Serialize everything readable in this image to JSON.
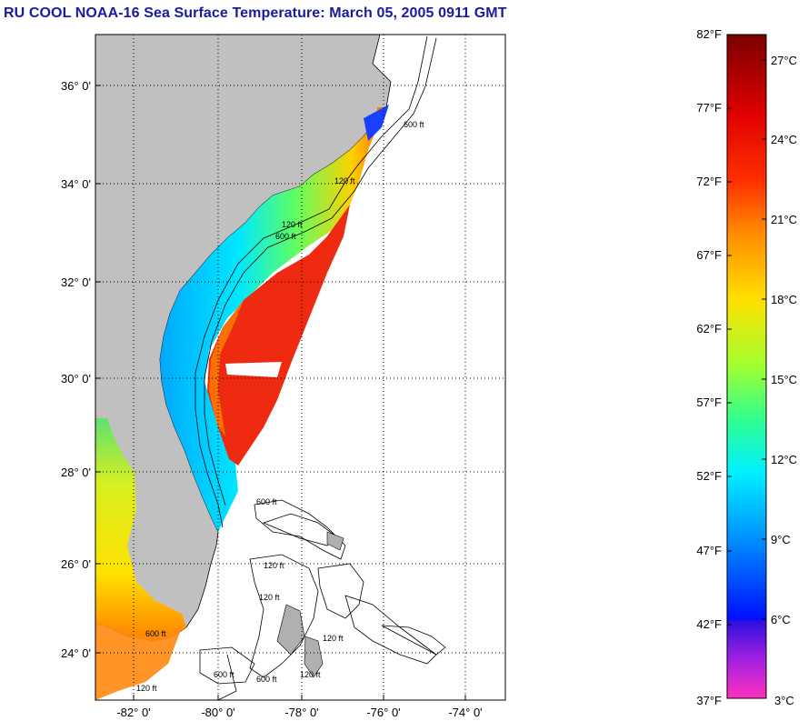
{
  "title": "RU COOL  NOAA-16  Sea Surface Temperature:  March 05, 2005 0911 GMT",
  "map": {
    "lat_ticks": [
      "36° 0'",
      "34° 0'",
      "32° 0'",
      "30° 0'",
      "28° 0'",
      "26° 0'",
      "24° 0'"
    ],
    "lon_ticks": [
      "-82° 0'",
      "-80° 0'",
      "-78° 0'",
      "-76° 0'",
      "-74° 0'"
    ],
    "depth_labels": [
      "120 ft",
      "600 ft",
      "120 ft",
      "600 ft",
      "600 ft",
      "120 ft",
      "120 ft",
      "600 ft",
      "120 ft",
      "600 ft",
      "120 ft",
      "600 ft",
      "120 ft"
    ],
    "colors": {
      "land": "#c0c0c0",
      "water_no_data": "#ffffff",
      "grid": "#000000"
    }
  },
  "colorbar": {
    "fahrenheit_labels": [
      "82°F",
      "77°F",
      "72°F",
      "67°F",
      "62°F",
      "57°F",
      "52°F",
      "47°F",
      "42°F",
      "37°F"
    ],
    "celsius_labels": [
      "27°C",
      "24°C",
      "21°C",
      "18°C",
      "15°C",
      "12°C",
      "9°C",
      "6°C",
      "3°C"
    ],
    "gradient_stops": [
      "#800000",
      "#ff0000",
      "#ff8000",
      "#ffff00",
      "#80ff40",
      "#00ffff",
      "#0080ff",
      "#0000ff",
      "#6000c0",
      "#ff40c0"
    ]
  }
}
